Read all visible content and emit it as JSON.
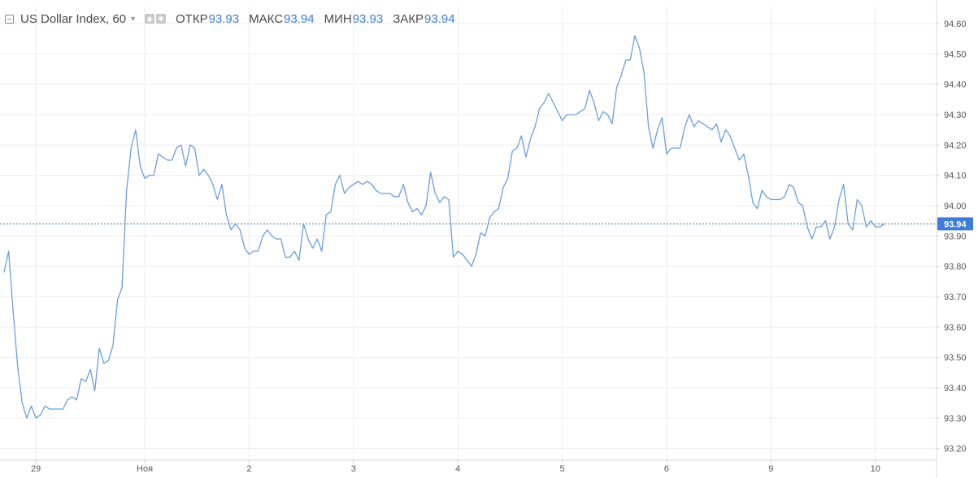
{
  "legend": {
    "title": "US Dollar Index, 60",
    "open_label": "ОТКР",
    "open_value": "93.93",
    "high_label": "МАКС",
    "high_value": "93.94",
    "low_label": "МИН",
    "low_value": "93.93",
    "close_label": "ЗАКР",
    "close_value": "93.94",
    "icons": [
      "collapse-icon",
      "chevron-down-icon",
      "eye-icon",
      "settings-icon"
    ]
  },
  "colors": {
    "line": "#6a9fe0",
    "grid": "#ececec",
    "axis_text": "#555555",
    "current_label_bg": "#3b7dd8",
    "current_line": "#3b6fb0"
  },
  "chart_data": {
    "type": "line",
    "title": "US Dollar Index, 60",
    "ylim": [
      93.2,
      94.65
    ],
    "yticks": [
      "93.20",
      "93.30",
      "93.40",
      "93.50",
      "93.60",
      "93.70",
      "93.80",
      "93.90",
      "94.00",
      "94.10",
      "94.20",
      "94.30",
      "94.40",
      "94.50",
      "94.60"
    ],
    "xlim": [
      0,
      201
    ],
    "xticks": [
      {
        "label": "29",
        "x": 7
      },
      {
        "label": "Ноя",
        "x": 31
      },
      {
        "label": "2",
        "x": 54
      },
      {
        "label": "3",
        "x": 77
      },
      {
        "label": "4",
        "x": 100
      },
      {
        "label": "5",
        "x": 123
      },
      {
        "label": "6",
        "x": 146
      },
      {
        "label": "9",
        "x": 169
      },
      {
        "label": "10",
        "x": 192
      }
    ],
    "current_value": "93.94",
    "grid": true,
    "series": [
      {
        "values": [
          93.78,
          93.85,
          93.65,
          93.47,
          93.35,
          93.3,
          93.34,
          93.3,
          93.31,
          93.34,
          93.33,
          93.33,
          93.33,
          93.33,
          93.36,
          93.37,
          93.36,
          93.43,
          93.42,
          93.46,
          93.39,
          93.53,
          93.48,
          93.49,
          93.54,
          93.69,
          93.73,
          94.05,
          94.19,
          94.25,
          94.13,
          94.09,
          94.1,
          94.1,
          94.17,
          94.16,
          94.15,
          94.15,
          94.19,
          94.2,
          94.13,
          94.2,
          94.19,
          94.1,
          94.12,
          94.1,
          94.07,
          94.02,
          94.07,
          93.97,
          93.92,
          93.94,
          93.92,
          93.86,
          93.84,
          93.85,
          93.85,
          93.9,
          93.92,
          93.9,
          93.89,
          93.89,
          93.83,
          93.83,
          93.85,
          93.82,
          93.94,
          93.89,
          93.86,
          93.89,
          93.85,
          93.97,
          93.98,
          94.07,
          94.1,
          94.04,
          94.06,
          94.07,
          94.08,
          94.07,
          94.08,
          94.07,
          94.05,
          94.04,
          94.04,
          94.04,
          94.03,
          94.03,
          94.07,
          94.01,
          93.98,
          93.99,
          93.97,
          94.0,
          94.11,
          94.04,
          94.01,
          94.03,
          94.02,
          93.83,
          93.85,
          93.84,
          93.82,
          93.8,
          93.84,
          93.91,
          93.9,
          93.96,
          93.98,
          93.99,
          94.06,
          94.09,
          94.18,
          94.19,
          94.23,
          94.16,
          94.22,
          94.26,
          94.32,
          94.34,
          94.37,
          94.34,
          94.31,
          94.28,
          94.3,
          94.3,
          94.3,
          94.31,
          94.32,
          94.38,
          94.34,
          94.28,
          94.31,
          94.3,
          94.27,
          94.39,
          94.43,
          94.48,
          94.48,
          94.56,
          94.52,
          94.44,
          94.26,
          94.19,
          94.25,
          94.29,
          94.17,
          94.19,
          94.19,
          94.19,
          94.26,
          94.3,
          94.26,
          94.28,
          94.27,
          94.26,
          94.25,
          94.27,
          94.21,
          94.25,
          94.23,
          94.19,
          94.15,
          94.17,
          94.1,
          94.01,
          93.99,
          94.05,
          94.03,
          94.02,
          94.02,
          94.02,
          94.03,
          94.07,
          94.06,
          94.01,
          94.0,
          93.93,
          93.89,
          93.93,
          93.93,
          93.95,
          93.89,
          93.93,
          94.02,
          94.07,
          93.94,
          93.92,
          94.02,
          94.0,
          93.93,
          93.95,
          93.93,
          93.93,
          93.94
        ]
      }
    ]
  }
}
